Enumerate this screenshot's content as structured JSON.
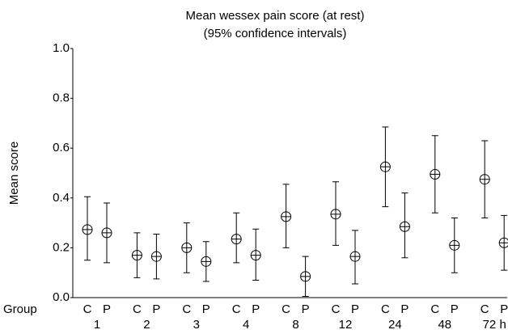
{
  "chart_data": {
    "type": "errorbar",
    "title": [
      "Mean wessex pain score (at rest)",
      "(95% confidence intervals)"
    ],
    "y_label": "Mean score",
    "x_label": "Group",
    "categories": [
      "C",
      "P",
      "C",
      "P",
      "C",
      "P",
      "C",
      "P",
      "C",
      "P",
      "C",
      "P",
      "C",
      "P",
      "C",
      "P",
      "C",
      "P"
    ],
    "time_labels": [
      "1",
      "2",
      "3",
      "4",
      "8",
      "12",
      "24",
      "48",
      "72 h"
    ],
    "values": [
      0.273,
      0.26,
      0.17,
      0.165,
      0.2,
      0.145,
      0.235,
      0.17,
      0.325,
      0.085,
      0.335,
      0.165,
      0.525,
      0.285,
      0.495,
      0.21,
      0.475,
      0.22
    ],
    "lower": [
      0.15,
      0.14,
      0.08,
      0.075,
      0.1,
      0.065,
      0.14,
      0.07,
      0.2,
      0.005,
      0.21,
      0.055,
      0.365,
      0.16,
      0.34,
      0.1,
      0.32,
      0.11
    ],
    "upper": [
      0.405,
      0.38,
      0.26,
      0.255,
      0.3,
      0.225,
      0.34,
      0.275,
      0.455,
      0.165,
      0.465,
      0.27,
      0.685,
      0.42,
      0.65,
      0.32,
      0.63,
      0.33
    ],
    "color": "#000000",
    "ylim": [
      0,
      1
    ],
    "yticks": [
      {
        "value": 0,
        "label": "0.0"
      },
      0.2,
      0.4,
      0.6,
      0.8,
      {
        "value": 1,
        "label": "1.0"
      }
    ]
  }
}
